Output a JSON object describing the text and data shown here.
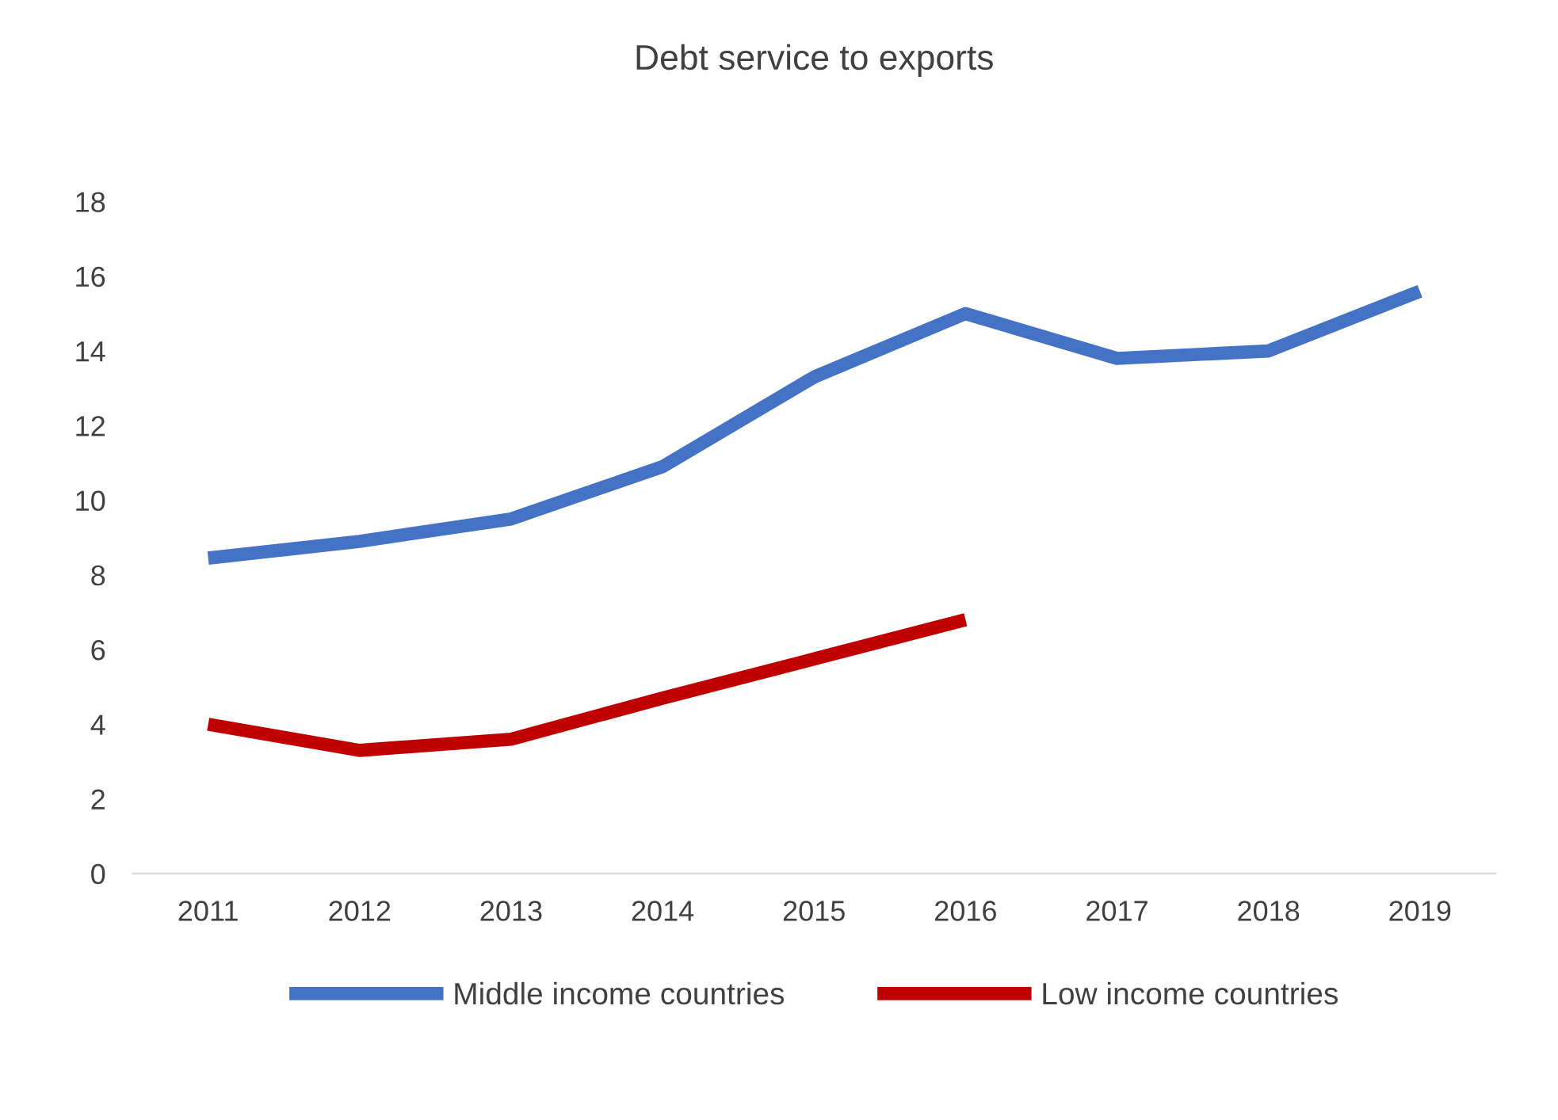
{
  "chart_data": {
    "type": "line",
    "title": "Debt service to exports",
    "categories": [
      "2011",
      "2012",
      "2013",
      "2014",
      "2015",
      "2016",
      "2017",
      "2018",
      "2019"
    ],
    "series": [
      {
        "name": "Middle income countries",
        "color": "#4472c4",
        "values": [
          8.45,
          8.9,
          9.5,
          10.9,
          13.3,
          15.0,
          13.8,
          14.0,
          15.6
        ]
      },
      {
        "name": "Low income countries",
        "color": "#c00000",
        "values": [
          4.0,
          3.3,
          3.6,
          4.7,
          5.75,
          6.8,
          null,
          null,
          null
        ]
      }
    ],
    "ylim": [
      0,
      18
    ],
    "yticks": [
      0,
      2,
      4,
      6,
      8,
      10,
      12,
      14,
      16,
      18
    ],
    "grid": false,
    "legend": "bottom",
    "marker": "none",
    "line_style": "solid"
  }
}
